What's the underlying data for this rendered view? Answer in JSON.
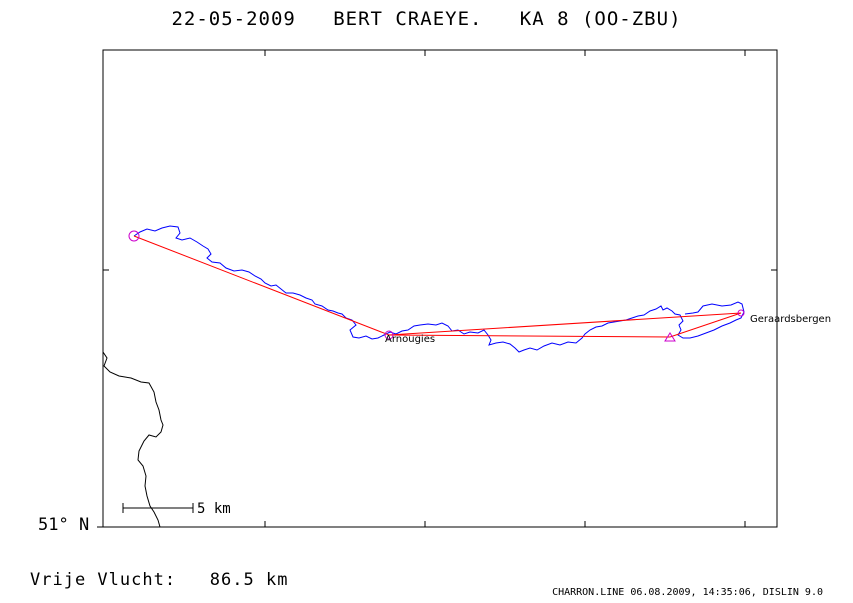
{
  "header": {
    "date": "22-05-2009",
    "pilot": "BERT CRAEYE.",
    "aircraft": "KA 8 (OO-ZBU)"
  },
  "map": {
    "latitude_label": "51° N",
    "scale_label": "5 km",
    "places": [
      {
        "name": "Arnougies"
      },
      {
        "name": "Geraardsbergen"
      }
    ],
    "colors": {
      "track": "#0000ff",
      "task_line": "#ff0000",
      "markers": "#cc00cc",
      "border": "#000000"
    }
  },
  "summary": {
    "label": "Vrije Vlucht:",
    "distance": "86.5 km"
  },
  "footer": {
    "credit": "CHARRON.LINE 06.08.2009, 14:35:06, DISLIN 9.0"
  }
}
